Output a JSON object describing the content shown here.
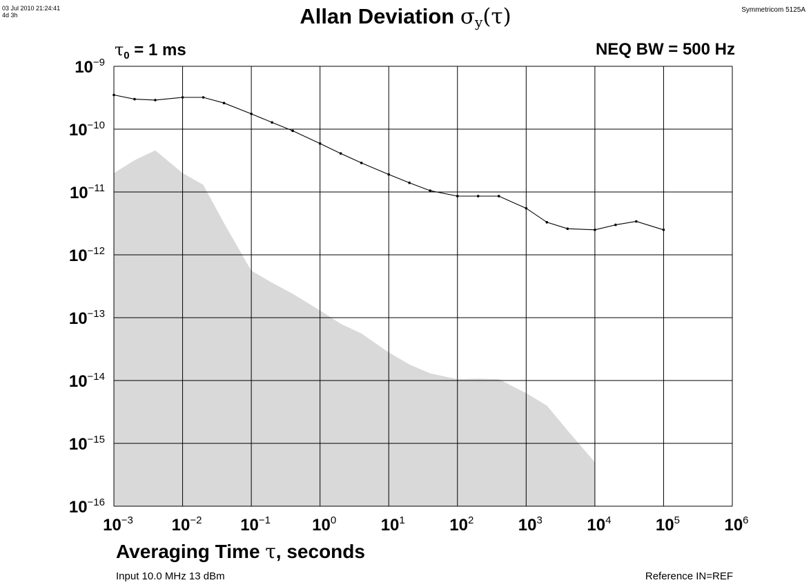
{
  "header": {
    "timestamp_line1": "03 Jul 2010 21:24:41",
    "timestamp_line2": "4d 3h",
    "instrument": "Symmetricom 5125A",
    "title_text": "Allan Deviation ",
    "title_symbol": "σ",
    "title_subscript": "y",
    "title_arg": "(τ)"
  },
  "annotations": {
    "tau0_symbol": "τ",
    "tau0_subscript": "0",
    "tau0_value": " = 1 ms",
    "neq_bw": "NEQ BW = 500 Hz"
  },
  "footer": {
    "xlabel_text": "Averaging Time ",
    "xlabel_symbol": "τ",
    "xlabel_suffix": ", seconds",
    "input": "Input 10.0 MHz 13 dBm",
    "reference": "Reference IN=REF"
  },
  "colors": {
    "line": "#000000",
    "noise_floor_fill": "#d9d9d9",
    "grid": "#000000"
  },
  "chart_data": {
    "type": "line",
    "title": "Allan Deviation σy(τ)",
    "xlabel": "Averaging Time τ, seconds",
    "ylabel": "",
    "xscale": "log",
    "yscale": "log",
    "xlim": [
      0.001,
      1000000
    ],
    "ylim": [
      1e-16,
      1e-09
    ],
    "grid": true,
    "x_ticks": [
      {
        "base": "10",
        "exp": "−3"
      },
      {
        "base": "10",
        "exp": "−2"
      },
      {
        "base": "10",
        "exp": "−1"
      },
      {
        "base": "10",
        "exp": "0"
      },
      {
        "base": "10",
        "exp": "1"
      },
      {
        "base": "10",
        "exp": "2"
      },
      {
        "base": "10",
        "exp": "3"
      },
      {
        "base": "10",
        "exp": "4"
      },
      {
        "base": "10",
        "exp": "5"
      },
      {
        "base": "10",
        "exp": "6"
      }
    ],
    "y_ticks": [
      {
        "base": "10",
        "exp": "−9"
      },
      {
        "base": "10",
        "exp": "−10"
      },
      {
        "base": "10",
        "exp": "−11"
      },
      {
        "base": "10",
        "exp": "−12"
      },
      {
        "base": "10",
        "exp": "−13"
      },
      {
        "base": "10",
        "exp": "−14"
      },
      {
        "base": "10",
        "exp": "−15"
      },
      {
        "base": "10",
        "exp": "−16"
      }
    ],
    "series": [
      {
        "kind": "line_with_markers",
        "x": [
          0.001,
          0.002,
          0.004,
          0.01,
          0.02,
          0.04,
          0.1,
          0.2,
          0.4,
          1,
          2,
          4,
          10,
          20,
          40,
          100,
          200,
          400,
          1000,
          2000,
          4000,
          10000,
          20000,
          40000,
          100000
        ],
        "y": [
          3.5e-10,
          3e-10,
          2.9e-10,
          3.2e-10,
          3.2e-10,
          2.6e-10,
          1.75e-10,
          1.28e-10,
          9.4e-11,
          5.9e-11,
          4.1e-11,
          2.9e-11,
          1.9e-11,
          1.4e-11,
          1.05e-11,
          8.6e-12,
          8.6e-12,
          8.6e-12,
          5.5e-12,
          3.3e-12,
          2.6e-12,
          2.5e-12,
          3e-12,
          3.4e-12,
          2.5e-12
        ]
      },
      {
        "kind": "area",
        "x": [
          0.001,
          0.002,
          0.004,
          0.01,
          0.02,
          0.04,
          0.1,
          0.2,
          0.4,
          1,
          2,
          4,
          10,
          20,
          40,
          100,
          200,
          400,
          1000,
          2000,
          4000,
          10000
        ],
        "y": [
          2e-11,
          3.2e-11,
          4.6e-11,
          2e-11,
          1.3e-11,
          3.2e-12,
          5.6e-13,
          3.6e-13,
          2.4e-13,
          1.3e-13,
          8e-14,
          5.6e-14,
          2.8e-14,
          1.8e-14,
          1.3e-14,
          1.05e-14,
          1.07e-14,
          1.05e-14,
          6.3e-15,
          4e-15,
          1.6e-15,
          5e-16
        ]
      }
    ]
  }
}
